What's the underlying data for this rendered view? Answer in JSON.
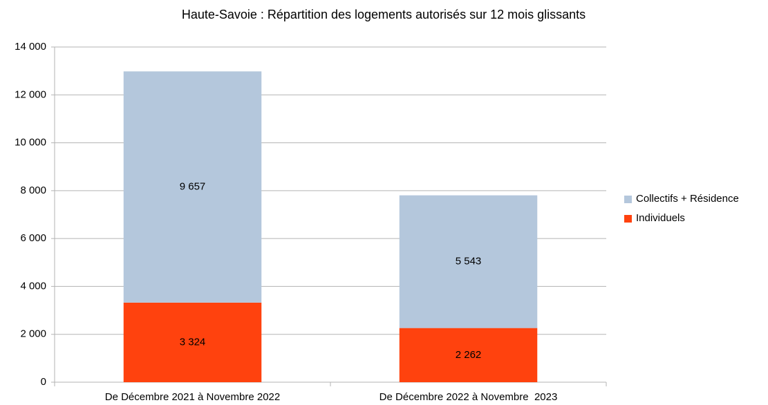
{
  "chart_data": {
    "type": "stacked_bar",
    "title": "Haute-Savoie : Répartition des logements autorisés sur 12 mois glissants",
    "categories": [
      "De Décembre 2021 à Novembre 2022",
      "De Décembre 2022 à Novembre  2023"
    ],
    "series": [
      {
        "name": "Collectifs + Résidence",
        "color": "#b4c7dc",
        "values": [
          9657,
          5543
        ],
        "value_labels": [
          "9 657",
          "5 543"
        ]
      },
      {
        "name": "Individuels",
        "color": "#ff420e",
        "values": [
          3324,
          2262
        ],
        "value_labels": [
          "3 324",
          "2 262"
        ]
      }
    ],
    "ylim": [
      0,
      14000
    ],
    "yticks": [
      0,
      {
        "value": 2000,
        "label": "2 000"
      },
      {
        "value": 4000,
        "label": "4 000"
      },
      {
        "value": 6000,
        "label": "6 000"
      },
      {
        "value": 8000,
        "label": "8 000"
      },
      {
        "value": 10000,
        "label": "10 000"
      },
      {
        "value": 12000,
        "label": "12 000"
      },
      {
        "value": 14000,
        "label": "14 000"
      }
    ],
    "grid": true,
    "legend": "right"
  }
}
